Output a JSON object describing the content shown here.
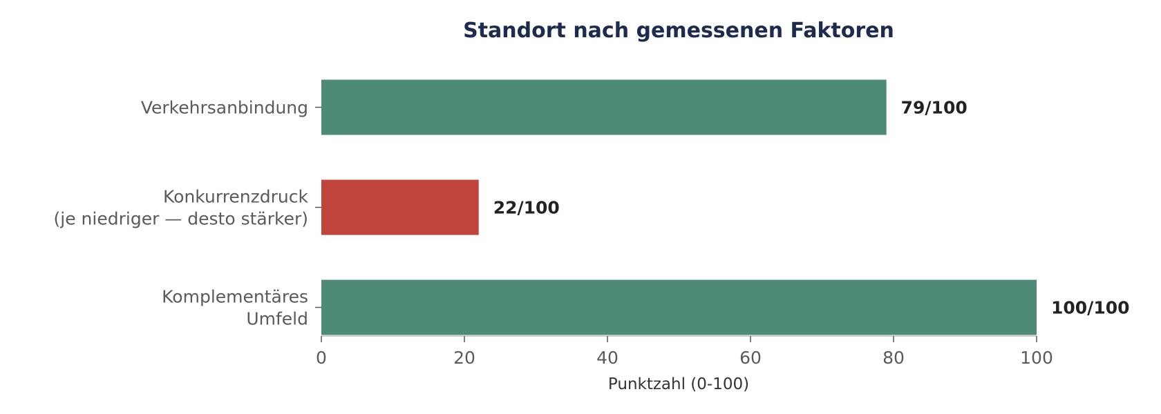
{
  "chart_data": {
    "type": "bar",
    "orientation": "horizontal",
    "title": "Standort nach gemessenen Faktoren",
    "xlabel": "Punktzahl (0-100)",
    "ylabel": "",
    "xlim": [
      0,
      100
    ],
    "xticks": [
      0,
      20,
      40,
      60,
      80,
      100
    ],
    "grid": false,
    "legend": "none",
    "categories": [
      [
        "Verkehrsanbindung"
      ],
      [
        "Konkurrenzdruck",
        "(je niedriger — desto stärker)"
      ],
      [
        "Komplementäres",
        "Umfeld"
      ]
    ],
    "values": [
      79,
      22,
      100
    ],
    "value_labels": [
      "79/100",
      "22/100",
      "100/100"
    ],
    "bar_colors": [
      "#4d8b78",
      "#c0443c",
      "#4d8b78"
    ]
  },
  "colors": {
    "title": "#1d2b4f",
    "category_text": "#5a5a5a",
    "value_text": "#222222",
    "axis_line": "#d0d0c4",
    "tick_mark": "#555555",
    "tick_text": "#5a5a5a",
    "axis_title": "#333333"
  }
}
